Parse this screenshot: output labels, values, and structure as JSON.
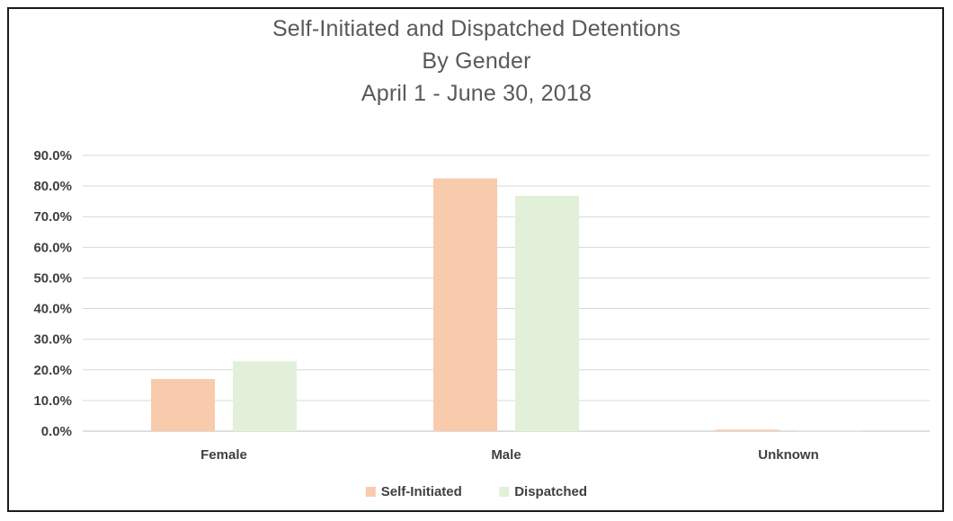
{
  "chart_data": {
    "type": "bar",
    "title_lines": [
      "Self-Initiated and Dispatched Detentions",
      "By Gender",
      "April 1 - June 30, 2018"
    ],
    "categories": [
      "Female",
      "Male",
      "Unknown"
    ],
    "series": [
      {
        "name": "Self-Initiated",
        "values": [
          17.0,
          82.5,
          0.5
        ],
        "color": "#F8CBAD"
      },
      {
        "name": "Dispatched",
        "values": [
          22.8,
          76.8,
          0.3
        ],
        "color": "#E2F0D9"
      }
    ],
    "ylim": [
      0,
      90
    ],
    "yticks": [
      "0.0%",
      "10.0%",
      "20.0%",
      "30.0%",
      "40.0%",
      "50.0%",
      "60.0%",
      "70.0%",
      "80.0%",
      "90.0%"
    ],
    "grid": true,
    "legend_position": "bottom"
  }
}
